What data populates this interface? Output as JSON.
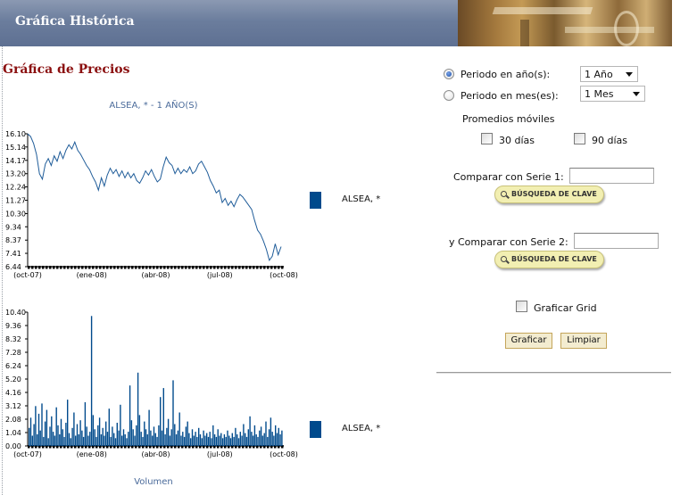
{
  "header": {
    "title": "Gráfica Histórica"
  },
  "section_title": "Gráfica de Precios",
  "price_chart": {
    "caption": "ALSEA, * - 1 AÑO(S)",
    "legend": "ALSEA, *"
  },
  "volume_chart": {
    "caption": "Volumen",
    "legend": "ALSEA, *"
  },
  "chart_data": [
    {
      "type": "line",
      "title": "ALSEA, * - 1 AÑO(S)",
      "legend": [
        "ALSEA, *"
      ],
      "legend_position": "right",
      "grid": false,
      "ylim": [
        6.44,
        16.1
      ],
      "y_ticks": [
        "16.10",
        "15.14",
        "14.17",
        "13.20",
        "12.24",
        "11.27",
        "10.30",
        "9.34",
        "8.37",
        "7.41",
        "6.44"
      ],
      "x_ticks": [
        "(oct-07)",
        "(ene-08)",
        "(abr-08)",
        "(jul-08)",
        "(oct-08)"
      ],
      "series": [
        {
          "name": "ALSEA, *",
          "color": "#1f5c99",
          "values": [
            16.1,
            15.9,
            15.4,
            14.6,
            13.2,
            12.8,
            13.9,
            14.3,
            13.8,
            14.5,
            14.1,
            14.8,
            14.3,
            14.9,
            15.3,
            15.0,
            15.5,
            14.9,
            14.6,
            14.2,
            13.8,
            13.5,
            13.0,
            12.6,
            12.0,
            12.9,
            12.3,
            13.1,
            13.6,
            13.2,
            13.5,
            13.0,
            13.4,
            12.9,
            13.3,
            12.9,
            13.2,
            12.7,
            12.5,
            12.9,
            13.4,
            13.1,
            13.5,
            13.0,
            12.6,
            12.8,
            13.7,
            14.4,
            14.0,
            13.8,
            13.2,
            13.6,
            13.2,
            13.5,
            13.3,
            13.7,
            13.2,
            13.4,
            13.9,
            14.1,
            13.7,
            13.3,
            12.7,
            12.3,
            11.8,
            12.0,
            11.1,
            11.4,
            10.9,
            11.2,
            10.8,
            11.3,
            11.7,
            11.5,
            11.2,
            10.9,
            10.6,
            9.8,
            9.1,
            8.8,
            8.3,
            7.7,
            6.9,
            7.2,
            8.1,
            7.3,
            7.9
          ]
        }
      ]
    },
    {
      "type": "bar",
      "title": "Volumen",
      "legend": [
        "ALSEA, *"
      ],
      "legend_position": "right",
      "grid": false,
      "ylim": [
        0,
        10.4
      ],
      "y_ticks": [
        "10.40",
        "9.36",
        "8.32",
        "7.28",
        "6.24",
        "5.20",
        "4.16",
        "3.12",
        "2.08",
        "1.04",
        "0.00"
      ],
      "x_ticks": [
        "(oct-07)",
        "(ene-08)",
        "(abr-08)",
        "(jul-08)",
        "(oct-08)"
      ],
      "series": [
        {
          "name": "ALSEA, *",
          "color": "#004a8c",
          "values": [
            1.4,
            2.2,
            0.8,
            1.7,
            3.1,
            0.9,
            2.5,
            1.2,
            3.3,
            0.7,
            1.9,
            2.8,
            0.6,
            1.5,
            2.3,
            1.1,
            0.8,
            3.0,
            1.6,
            0.9,
            2.1,
            1.3,
            0.7,
            1.8,
            3.6,
            1.0,
            0.6,
            1.4,
            2.6,
            0.8,
            1.7,
            0.9,
            2.0,
            1.2,
            0.7,
            3.4,
            1.5,
            0.8,
            1.1,
            10.1,
            2.4,
            1.3,
            0.7,
            1.6,
            2.2,
            0.9,
            1.4,
            0.8,
            1.9,
            1.1,
            2.9,
            0.7,
            1.5,
            1.0,
            0.6,
            1.8,
            1.2,
            3.2,
            0.8,
            1.3,
            0.9,
            0.6,
            1.1,
            4.7,
            2.0,
            1.3,
            0.8,
            1.6,
            5.7,
            2.4,
            1.1,
            0.7,
            1.9,
            1.3,
            0.9,
            2.8,
            1.2,
            0.8,
            1.5,
            1.0,
            0.7,
            1.6,
            3.8,
            1.2,
            4.5,
            0.9,
            1.4,
            2.1,
            0.8,
            1.3,
            5.1,
            1.7,
            0.9,
            1.2,
            2.6,
            0.8,
            1.1,
            0.7,
            1.5,
            1.9,
            1.0,
            0.6,
            1.3,
            0.8,
            1.1,
            0.7,
            1.4,
            0.9,
            0.6,
            1.2,
            0.8,
            1.0,
            0.7,
            1.1,
            0.6,
            1.6,
            0.9,
            0.7,
            1.3,
            0.8,
            1.0,
            0.6,
            0.9,
            0.7,
            1.2,
            0.8,
            0.6,
            1.0,
            0.7,
            1.4,
            0.9,
            0.6,
            1.1,
            0.8,
            1.7,
            1.0,
            0.7,
            1.3,
            2.3,
            1.1,
            0.8,
            1.6,
            0.9,
            0.7,
            1.2,
            1.5,
            0.8,
            1.0,
            1.9,
            0.7,
            1.3,
            2.2,
            1.1,
            0.8,
            1.6,
            1.0,
            1.4,
            0.9,
            1.2
          ]
        }
      ]
    }
  ],
  "form": {
    "period_years_label": "Periodo en año(s):",
    "period_years_value": "1 Año",
    "period_months_label": "Periodo en mes(es):",
    "period_months_value": "1 Mes",
    "moving_averages_label": "Promedios móviles",
    "ma30_label": "30 días",
    "ma90_label": "90 días",
    "compare1_label": "Comparar con Serie 1:",
    "compare1_value": "",
    "compare2_label": "y Comparar con Serie 2:",
    "compare2_value": "",
    "search_button_label": "BÚSQUEDA DE CLAVE",
    "grid_label": "Graficar Grid",
    "plot_button": "Graficar",
    "clear_button": "Limpiar"
  }
}
